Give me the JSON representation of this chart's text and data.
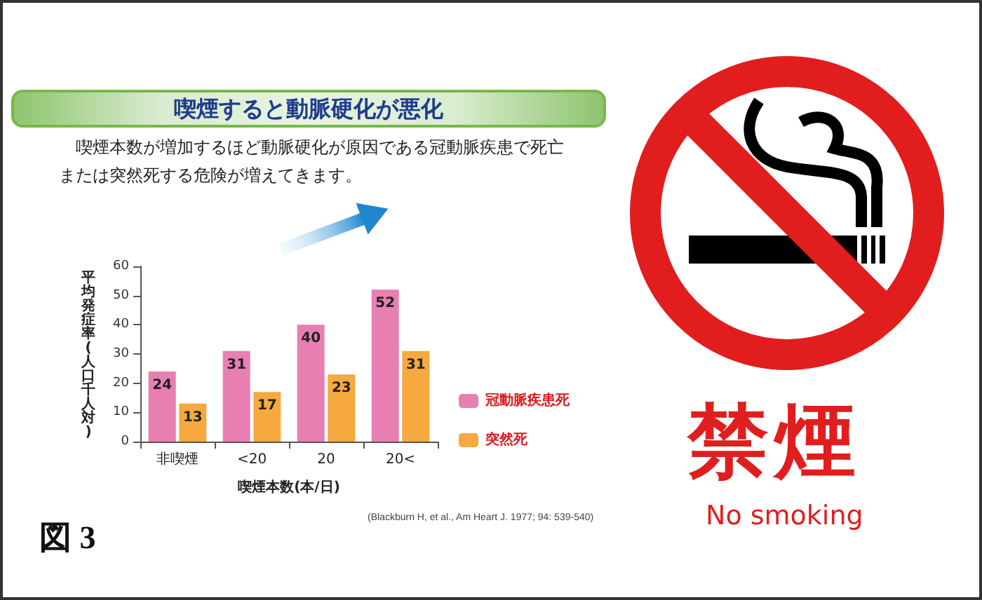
{
  "chart_data": {
    "type": "bar",
    "title": "喫煙すると動脈硬化が悪化",
    "subtitle": "喫煙本数が増加するほど動脈硬化が原因である冠動脈疾患で死亡または突然死する危険が増えてきます。",
    "xlabel": "喫煙本数(本/日)",
    "ylabel": "平均発症率(人口千人対)",
    "categories": [
      "非喫煙",
      "<20",
      "20",
      "20<"
    ],
    "series": [
      {
        "name": "冠動脈疾患死",
        "color": "#e77fb3",
        "values": [
          24,
          31,
          40,
          52
        ]
      },
      {
        "name": "突然死",
        "color": "#f5a93f",
        "values": [
          13,
          17,
          23,
          31
        ]
      }
    ],
    "ylim": [
      0,
      60
    ],
    "yticks": [
      0,
      10,
      20,
      30,
      40,
      50,
      60
    ],
    "grid": false,
    "legend": "right",
    "data_labels": true,
    "annotations": [
      "図 3",
      "(Blackburn H, et al., Am Heart J. 1977; 94: 539-540)",
      "禁煙",
      "No smoking"
    ]
  }
}
